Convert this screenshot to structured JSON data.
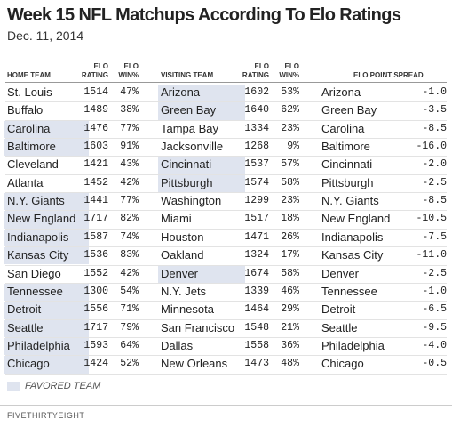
{
  "header": {
    "title": "Week 15 NFL Matchups According To Elo Ratings",
    "subtitle": "Dec. 11, 2014"
  },
  "table": {
    "columns": [
      [
        "HOME TEAM"
      ],
      [
        "ELO",
        "RATING"
      ],
      [
        "ELO",
        "WIN%"
      ],
      [
        "VISITING TEAM"
      ],
      [
        "ELO",
        "RATING"
      ],
      [
        "ELO",
        "WIN%"
      ],
      [
        "ELO POINT SPREAD"
      ]
    ],
    "favored_color": "#dfe4ef",
    "rows": [
      {
        "cells": [
          "St. Louis",
          1514,
          "47%",
          "Arizona",
          1602,
          "53%",
          "Arizona",
          "-1.0"
        ],
        "favored": "visitor"
      },
      {
        "cells": [
          "Buffalo",
          1489,
          "38%",
          "Green Bay",
          1640,
          "62%",
          "Green Bay",
          "-3.5"
        ],
        "favored": "visitor"
      },
      {
        "cells": [
          "Carolina",
          1476,
          "77%",
          "Tampa Bay",
          1334,
          "23%",
          "Carolina",
          "-8.5"
        ],
        "favored": "home"
      },
      {
        "cells": [
          "Baltimore",
          1603,
          "91%",
          "Jacksonville",
          1268,
          "9%",
          "Baltimore",
          "-16.0"
        ],
        "favored": "home"
      },
      {
        "cells": [
          "Cleveland",
          1421,
          "43%",
          "Cincinnati",
          1537,
          "57%",
          "Cincinnati",
          "-2.0"
        ],
        "favored": "visitor"
      },
      {
        "cells": [
          "Atlanta",
          1452,
          "42%",
          "Pittsburgh",
          1574,
          "58%",
          "Pittsburgh",
          "-2.5"
        ],
        "favored": "visitor"
      },
      {
        "cells": [
          "N.Y. Giants",
          1441,
          "77%",
          "Washington",
          1299,
          "23%",
          "N.Y. Giants",
          "-8.5"
        ],
        "favored": "home"
      },
      {
        "cells": [
          "New England",
          1717,
          "82%",
          "Miami",
          1517,
          "18%",
          "New England",
          "-10.5"
        ],
        "favored": "home"
      },
      {
        "cells": [
          "Indianapolis",
          1587,
          "74%",
          "Houston",
          1471,
          "26%",
          "Indianapolis",
          "-7.5"
        ],
        "favored": "home"
      },
      {
        "cells": [
          "Kansas City",
          1536,
          "83%",
          "Oakland",
          1324,
          "17%",
          "Kansas City",
          "-11.0"
        ],
        "favored": "home"
      },
      {
        "cells": [
          "San Diego",
          1552,
          "42%",
          "Denver",
          1674,
          "58%",
          "Denver",
          "-2.5"
        ],
        "favored": "visitor"
      },
      {
        "cells": [
          "Tennessee",
          1300,
          "54%",
          "N.Y. Jets",
          1339,
          "46%",
          "Tennessee",
          "-1.0"
        ],
        "favored": "home"
      },
      {
        "cells": [
          "Detroit",
          1556,
          "71%",
          "Minnesota",
          1464,
          "29%",
          "Detroit",
          "-6.5"
        ],
        "favored": "home"
      },
      {
        "cells": [
          "Seattle",
          1717,
          "79%",
          "San Francisco",
          1548,
          "21%",
          "Seattle",
          "-9.5"
        ],
        "favored": "home"
      },
      {
        "cells": [
          "Philadelphia",
          1593,
          "64%",
          "Dallas",
          1558,
          "36%",
          "Philadelphia",
          "-4.0"
        ],
        "favored": "home"
      },
      {
        "cells": [
          "Chicago",
          1424,
          "52%",
          "New Orleans",
          1473,
          "48%",
          "Chicago",
          "-0.5"
        ],
        "favored": "home"
      }
    ]
  },
  "legend": {
    "label": "FAVORED TEAM"
  },
  "footer": {
    "brand": "FIVETHIRTYEIGHT"
  }
}
